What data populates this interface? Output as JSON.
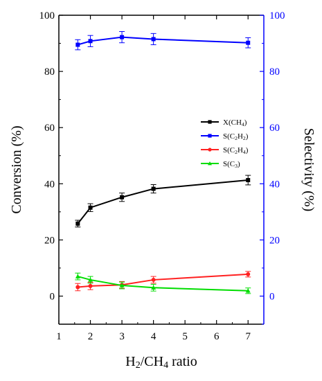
{
  "chart_data": {
    "type": "line",
    "xlabel_parts": [
      {
        "t": "H"
      },
      {
        "t": "2",
        "sub": true
      },
      {
        "t": "/CH"
      },
      {
        "t": "4",
        "sub": true
      },
      {
        "t": " ratio"
      }
    ],
    "ylabel_left": "Conversion (%)",
    "ylabel_right": "Selectivity (%)",
    "xlim": [
      1,
      7.5
    ],
    "ylim_left": [
      -10,
      100
    ],
    "ylim_right": [
      -10,
      100
    ],
    "xticks": [
      1,
      2,
      3,
      4,
      5,
      6,
      7
    ],
    "yticks_left": [
      0,
      20,
      40,
      60,
      80,
      100
    ],
    "yticks_right": [
      0,
      20,
      40,
      60,
      80,
      100
    ],
    "right_axis_color": "#0000ff",
    "grid": false,
    "legend_position": "center-right",
    "series": [
      {
        "label_parts": [
          {
            "t": "X(CH"
          },
          {
            "t": "4",
            "sub": true
          },
          {
            "t": ")"
          }
        ],
        "axis": "left",
        "color": "#000000",
        "marker": "square",
        "x": [
          1.6,
          2,
          3,
          4,
          7
        ],
        "y": [
          25.8,
          31.5,
          35.2,
          38.2,
          41.3
        ],
        "err": [
          1.2,
          1.4,
          1.5,
          1.5,
          1.7
        ]
      },
      {
        "label_parts": [
          {
            "t": "S(C"
          },
          {
            "t": "2",
            "sub": true
          },
          {
            "t": "H"
          },
          {
            "t": "2",
            "sub": true
          },
          {
            "t": ")"
          }
        ],
        "axis": "right",
        "color": "#0000ff",
        "marker": "square",
        "x": [
          1.6,
          2,
          3,
          4,
          7
        ],
        "y": [
          89.5,
          90.8,
          92.2,
          91.5,
          90.2
        ],
        "err": [
          1.8,
          2.0,
          2.0,
          2.0,
          1.8
        ]
      },
      {
        "label_parts": [
          {
            "t": "S(C"
          },
          {
            "t": "2",
            "sub": true
          },
          {
            "t": "H"
          },
          {
            "t": "4",
            "sub": true
          },
          {
            "t": ")"
          }
        ],
        "axis": "right",
        "color": "#ff2020",
        "marker": "circle",
        "x": [
          1.6,
          2,
          3,
          4,
          7
        ],
        "y": [
          3.2,
          3.6,
          4.0,
          5.8,
          7.8
        ],
        "err": [
          1.3,
          1.3,
          1.2,
          1.2,
          1.0
        ]
      },
      {
        "label_parts": [
          {
            "t": "S(C"
          },
          {
            "t": "3",
            "sub": true
          },
          {
            "t": ")"
          }
        ],
        "axis": "right",
        "color": "#00dd00",
        "marker": "triangle",
        "x": [
          1.6,
          2,
          3,
          4,
          7
        ],
        "y": [
          7.0,
          5.8,
          3.8,
          3.0,
          1.9
        ],
        "err": [
          1.2,
          1.2,
          1.2,
          1.2,
          1.0
        ]
      }
    ]
  }
}
